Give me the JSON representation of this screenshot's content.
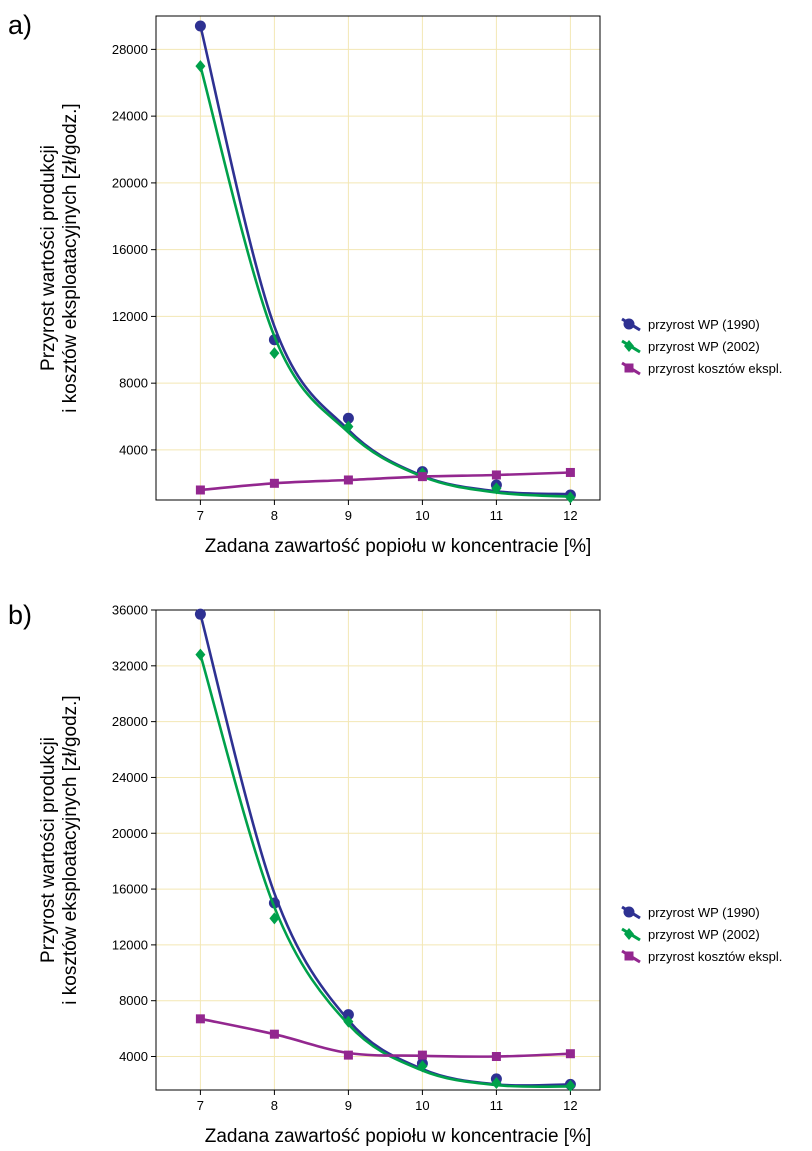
{
  "chart_data": [
    {
      "type": "line",
      "panel_label": "a)",
      "xlabel": "Zadana zawartość  popiołu w koncentracie  [%]",
      "ylabel": [
        "Przyrost wartości produkcji",
        "i kosztów eksploatacyjnych [zł/godz.]"
      ],
      "xlim": [
        6.4,
        12.4
      ],
      "ylim": [
        1000,
        30000
      ],
      "xticks": [
        7,
        8,
        9,
        10,
        11,
        12
      ],
      "yticks": [
        4000,
        8000,
        12000,
        16000,
        20000,
        24000,
        28000
      ],
      "grid": true,
      "legend_position": "right",
      "series": [
        {
          "name": "przyrost WP (1990)",
          "color": "#2e3192",
          "marker": "circle",
          "x": [
            7,
            8,
            9,
            10,
            11,
            12
          ],
          "y": [
            29400,
            10600,
            5900,
            2700,
            1900,
            1300
          ],
          "fit": [
            29400,
            11400,
            5200,
            2450,
            1520,
            1350
          ]
        },
        {
          "name": "przyrost WP (2002)",
          "color": "#00a14b",
          "marker": "diamond",
          "x": [
            7,
            8,
            9,
            10,
            11,
            12
          ],
          "y": [
            27000,
            9800,
            5400,
            2600,
            1700,
            1150
          ],
          "fit": [
            27000,
            10800,
            5050,
            2400,
            1450,
            1200
          ]
        },
        {
          "name": "przyrost kosztów ekspl.",
          "color": "#93278f",
          "marker": "square",
          "x": [
            7,
            8,
            9,
            10,
            11,
            12
          ],
          "y": [
            1600,
            2000,
            2200,
            2400,
            2500,
            2650
          ],
          "fit": [
            1600,
            2000,
            2200,
            2400,
            2500,
            2650
          ]
        }
      ]
    },
    {
      "type": "line",
      "panel_label": "b)",
      "xlabel": "Zadana zawartość  popiołu w koncentracie  [%]",
      "ylabel": [
        "Przyrost wartości produkcji",
        "i kosztów eksploatacyjnych [zł/godz.]"
      ],
      "xlim": [
        6.4,
        12.4
      ],
      "ylim": [
        1600,
        36000
      ],
      "xticks": [
        7,
        8,
        9,
        10,
        11,
        12
      ],
      "yticks": [
        4000,
        8000,
        12000,
        16000,
        20000,
        24000,
        28000,
        32000,
        36000
      ],
      "grid": true,
      "legend_position": "right",
      "series": [
        {
          "name": "przyrost WP (1990)",
          "color": "#2e3192",
          "marker": "circle",
          "x": [
            7,
            8,
            9,
            10,
            11,
            12
          ],
          "y": [
            35700,
            15000,
            7000,
            3500,
            2400,
            2000
          ],
          "fit": [
            35700,
            15700,
            6600,
            3100,
            2000,
            2000
          ]
        },
        {
          "name": "przyrost WP (2002)",
          "color": "#00a14b",
          "marker": "diamond",
          "x": [
            7,
            8,
            9,
            10,
            11,
            12
          ],
          "y": [
            32800,
            13900,
            6500,
            3300,
            2100,
            1900
          ],
          "fit": [
            32800,
            14700,
            6300,
            3000,
            1950,
            1850
          ]
        },
        {
          "name": "przyrost kosztów ekspl.",
          "color": "#93278f",
          "marker": "square",
          "x": [
            7,
            8,
            9,
            10,
            11,
            12
          ],
          "y": [
            6700,
            5600,
            4100,
            4100,
            4000,
            4200
          ],
          "fit": [
            6700,
            5600,
            4250,
            4050,
            4000,
            4200
          ]
        }
      ]
    }
  ]
}
